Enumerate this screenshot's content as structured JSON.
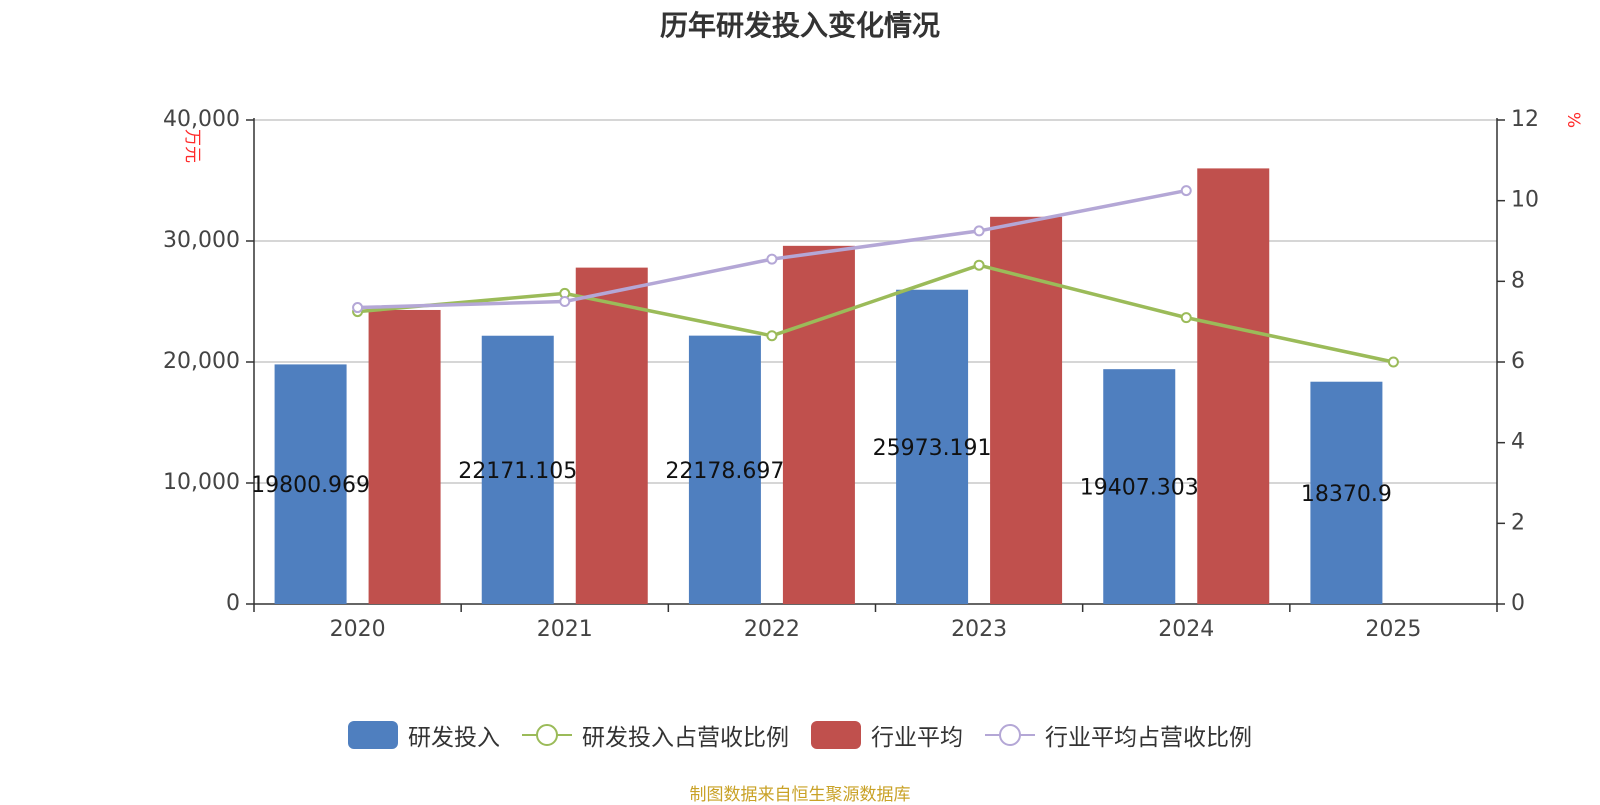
{
  "chart_data": {
    "type": "bar",
    "title": "历年研发投入变化情况",
    "categories": [
      "2020",
      "2021",
      "2022",
      "2023",
      "2024",
      "2025"
    ],
    "y_left": {
      "unit": "万元",
      "ylim": [
        0,
        40000
      ],
      "ticks": [
        0,
        10000,
        20000,
        30000,
        40000
      ],
      "tick_labels": [
        "0",
        "10,000",
        "20,000",
        "30,000",
        "40,000"
      ]
    },
    "y_right": {
      "unit": "%",
      "ylim": [
        0,
        12
      ],
      "ticks": [
        0,
        2,
        4,
        6,
        8,
        10,
        12
      ],
      "tick_labels": [
        "0",
        "2",
        "4",
        "6",
        "8",
        "10",
        "12"
      ]
    },
    "grid": true,
    "legend_position": "bottom",
    "series": [
      {
        "name": "研发投入",
        "kind": "bar",
        "axis": "left",
        "color": "#4f7fbf",
        "values": [
          19800.969,
          22171.105,
          22178.697,
          25973.191,
          19407.303,
          18370.9
        ],
        "data_labels": [
          "19800.969",
          "22171.105",
          "22178.697",
          "25973.191",
          "19407.303",
          "18370.9"
        ]
      },
      {
        "name": "研发投入占营收比例",
        "kind": "line",
        "axis": "right",
        "color": "#9bbb59",
        "values": [
          7.25,
          7.7,
          6.65,
          8.4,
          7.1,
          6.0
        ]
      },
      {
        "name": "行业平均",
        "kind": "bar",
        "axis": "left",
        "color": "#c0504d",
        "values": [
          24300,
          27800,
          29600,
          32000,
          36000,
          null
        ]
      },
      {
        "name": "行业平均占营收比例",
        "kind": "line",
        "axis": "right",
        "color": "#b4a7d6",
        "values": [
          7.35,
          7.5,
          8.55,
          9.25,
          10.25,
          null
        ]
      }
    ]
  },
  "legend": {
    "items": [
      {
        "label": "研发投入",
        "icon": "bar-swatch",
        "color": "#4f7fbf"
      },
      {
        "label": "研发投入占营收比例",
        "icon": "line-circle",
        "color": "#9bbb59"
      },
      {
        "label": "行业平均",
        "icon": "bar-swatch",
        "color": "#c0504d"
      },
      {
        "label": "行业平均占营收比例",
        "icon": "line-circle",
        "color": "#b4a7d6"
      }
    ]
  },
  "source": "制图数据来自恒生聚源数据库"
}
